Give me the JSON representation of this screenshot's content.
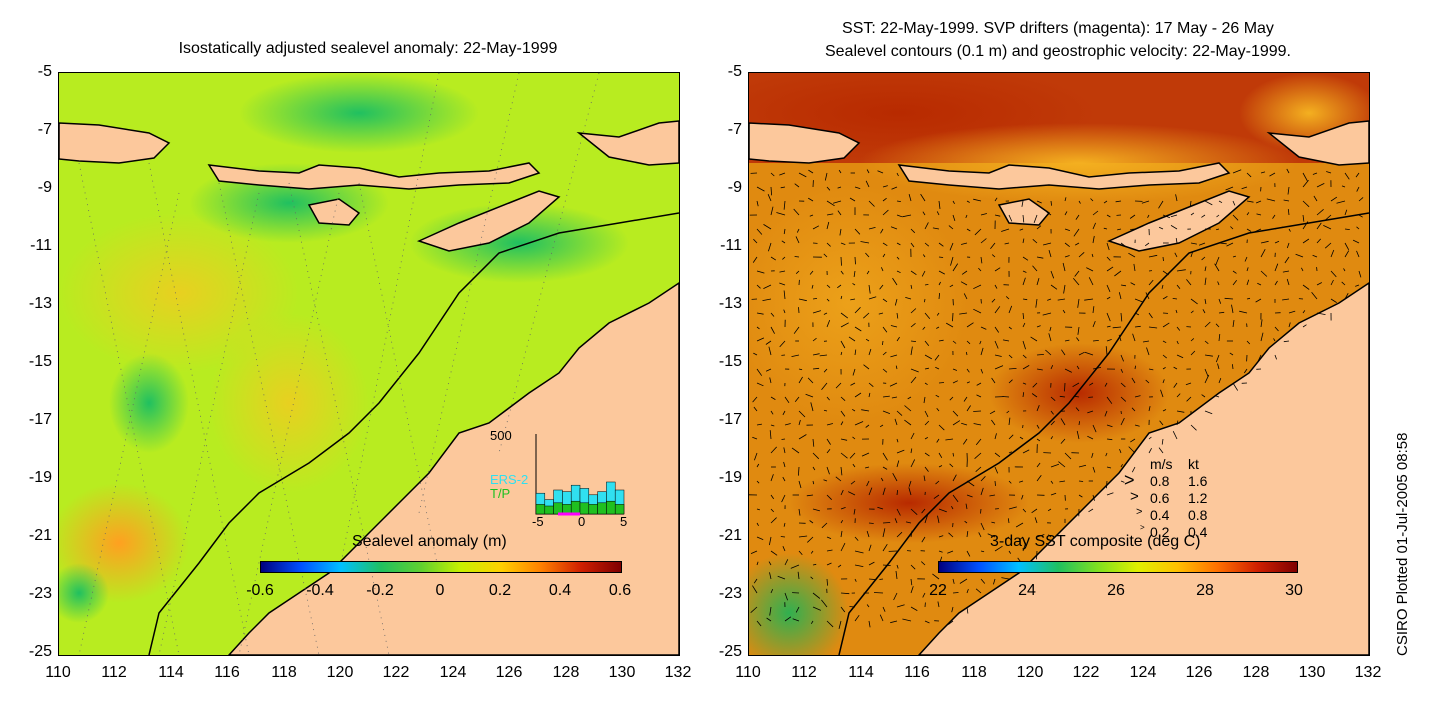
{
  "left_panel": {
    "title": "Isostatically adjusted sealevel anomaly: 22-May-1999",
    "colorbar": {
      "title": "Sealevel anomaly (m)",
      "ticks": [
        "-0.6",
        "-0.4",
        "-0.2",
        "0",
        "0.2",
        "0.4",
        "0.6"
      ],
      "colors": [
        "#00007f",
        "#0050ff",
        "#00c0ff",
        "#20c060",
        "#60d030",
        "#c8f000",
        "#ffd000",
        "#ff8000",
        "#d02000",
        "#7f0000"
      ]
    },
    "inset": {
      "ymax_label": "500",
      "series": [
        "ERS-2",
        "T/P"
      ],
      "series_colors": [
        "#30e0f0",
        "#20c020"
      ],
      "x_ticks": [
        "-5",
        "0",
        "5"
      ],
      "bars_ers2": [
        130,
        90,
        150,
        140,
        180,
        160,
        120,
        140,
        200,
        150
      ],
      "bars_tp": [
        60,
        50,
        70,
        60,
        80,
        70,
        60,
        70,
        80,
        60
      ],
      "ymax": 500
    }
  },
  "right_panel": {
    "title_line1": "SST: 22-May-1999. SVP drifters (magenta): 17 May - 26 May",
    "title_line2": "Sealevel contours (0.1 m) and geostrophic velocity: 22-May-1999.",
    "colorbar": {
      "title": "3-day SST composite (deg C)",
      "ticks": [
        "22",
        "24",
        "26",
        "28",
        "30"
      ],
      "colors": [
        "#00007f",
        "#0050ff",
        "#00c0ff",
        "#20c060",
        "#80e020",
        "#e0f000",
        "#ffc000",
        "#ff7000",
        "#d02000",
        "#7f0000"
      ]
    },
    "velocity_legend": {
      "header_ms": "m/s",
      "header_kt": "kt",
      "rows": [
        {
          "ms": "0.8",
          "kt": "1.6"
        },
        {
          "ms": "0.6",
          "kt": "1.2"
        },
        {
          "ms": "0.4",
          "kt": "0.8"
        },
        {
          "ms": "0.2",
          "kt": "0.4"
        }
      ]
    }
  },
  "axes": {
    "lat_ticks": [
      "-5",
      "-7",
      "-9",
      "-11",
      "-13",
      "-15",
      "-17",
      "-19",
      "-21",
      "-23",
      "-25"
    ],
    "lon_ticks": [
      "110",
      "112",
      "114",
      "116",
      "118",
      "120",
      "122",
      "124",
      "126",
      "128",
      "130",
      "132"
    ]
  },
  "credit": "CSIRO Plotted 01-Jul-2005 08:58",
  "colors": {
    "land": "#fcc89c",
    "coast": "#000000",
    "left_sea": "#b8ec20",
    "right_sea": "#e08a10"
  }
}
